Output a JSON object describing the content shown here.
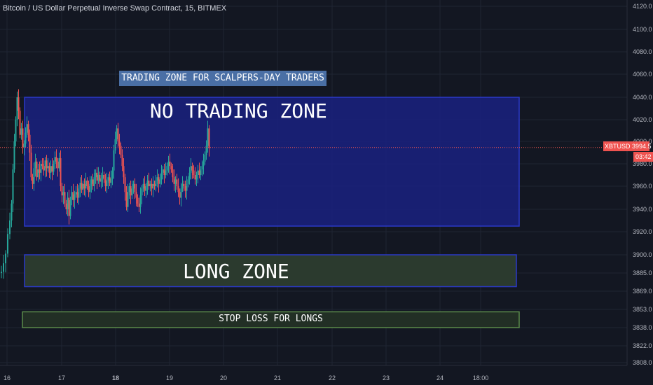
{
  "header": {
    "title": "Bitcoin / US Dollar Perpetual Inverse Swap Contract, 15, BITMEX"
  },
  "ticker": {
    "symbol": "XBTUSD",
    "price": "3994.5",
    "countdown": "03:42"
  },
  "annotations": {
    "trading_zone": "TRADING ZONE FOR SCALPERS-DAY TRADERS",
    "no_trading_zone": "NO TRADING ZONE",
    "long_zone": "LONG ZONE",
    "stop_loss": "STOP LOSS FOR LONGS"
  },
  "colors": {
    "background": "#131722",
    "grid": "#1f2433",
    "up_candle": "#26a69a",
    "down_candle": "#ef5350",
    "no_trade_fill": "#1a2180",
    "no_trade_border": "#2a38c8",
    "long_fill": "#2b3a2e",
    "long_border": "#2a38c8",
    "stop_fill": "#222f25",
    "stop_border": "#5a8a4a",
    "price_line": "#ef5350"
  },
  "chart_data": {
    "type": "candlestick",
    "title": "Bitcoin / US Dollar Perpetual Inverse Swap Contract, 15, BITMEX",
    "x_ticks": [
      "16",
      "17",
      "18",
      "19",
      "20",
      "21",
      "22",
      "23",
      "24",
      "18:00"
    ],
    "y_ticks": [
      "4120.0",
      "4100.0",
      "4080.0",
      "4060.0",
      "4040.0",
      "4020.0",
      "4000.0",
      "3980.0",
      "3960.0",
      "3940.0",
      "3920.0",
      "3900.0",
      "3885.0",
      "3869.0",
      "3853.0",
      "3838.0",
      "3822.0",
      "3808.0"
    ],
    "ylim": [
      3805,
      4125
    ],
    "last_price": 3994.5,
    "zones": [
      {
        "name": "no_trading_zone",
        "from": 3925,
        "to": 4040
      },
      {
        "name": "long_zone",
        "from": 3873,
        "to": 3900
      },
      {
        "name": "stop_loss",
        "from": 3838,
        "to": 3851
      }
    ],
    "price_path": [
      [
        0,
        3885
      ],
      [
        3,
        3886
      ],
      [
        6,
        3893
      ],
      [
        9,
        3901
      ],
      [
        12,
        3918
      ],
      [
        15,
        3930
      ],
      [
        17,
        3945
      ],
      [
        19,
        3975
      ],
      [
        21,
        4000
      ],
      [
        23,
        4020
      ],
      [
        25,
        4040
      ],
      [
        27,
        4028
      ],
      [
        29,
        4006
      ],
      [
        31,
        4012
      ],
      [
        33,
        3995
      ],
      [
        35,
        3998
      ],
      [
        37,
        4008
      ],
      [
        39,
        4016
      ],
      [
        41,
        4006
      ],
      [
        43,
        3990
      ],
      [
        45,
        3968
      ],
      [
        47,
        3962
      ],
      [
        49,
        3976
      ],
      [
        51,
        3982
      ],
      [
        53,
        3968
      ],
      [
        55,
        3975
      ],
      [
        57,
        3972
      ],
      [
        59,
        3980
      ],
      [
        61,
        3978
      ],
      [
        63,
        3974
      ],
      [
        65,
        3983
      ],
      [
        67,
        3976
      ],
      [
        69,
        3978
      ],
      [
        71,
        3972
      ],
      [
        73,
        3978
      ],
      [
        75,
        3973
      ],
      [
        77,
        3980
      ],
      [
        79,
        3986
      ],
      [
        81,
        3982
      ],
      [
        83,
        3976
      ],
      [
        85,
        3985
      ],
      [
        87,
        3960
      ],
      [
        89,
        3952
      ],
      [
        91,
        3955
      ],
      [
        93,
        3945
      ],
      [
        95,
        3940
      ],
      [
        97,
        3950
      ],
      [
        99,
        3934
      ],
      [
        101,
        3948
      ],
      [
        103,
        3955
      ],
      [
        105,
        3948
      ],
      [
        107,
        3953
      ],
      [
        109,
        3955
      ],
      [
        111,
        3950
      ],
      [
        113,
        3958
      ],
      [
        115,
        3963
      ],
      [
        117,
        3957
      ],
      [
        119,
        3962
      ],
      [
        121,
        3958
      ],
      [
        123,
        3965
      ],
      [
        125,
        3960
      ],
      [
        127,
        3955
      ],
      [
        129,
        3962
      ],
      [
        131,
        3966
      ],
      [
        133,
        3960
      ],
      [
        135,
        3968
      ],
      [
        137,
        3972
      ],
      [
        139,
        3965
      ],
      [
        141,
        3970
      ],
      [
        143,
        3964
      ],
      [
        145,
        3967
      ],
      [
        147,
        3970
      ],
      [
        149,
        3966
      ],
      [
        151,
        3960
      ],
      [
        153,
        3965
      ],
      [
        155,
        3968
      ],
      [
        157,
        3963
      ],
      [
        159,
        3967
      ],
      [
        161,
        3974
      ],
      [
        163,
        3992
      ],
      [
        165,
        4002
      ],
      [
        167,
        4012
      ],
      [
        169,
        4000
      ],
      [
        171,
        3996
      ],
      [
        173,
        3988
      ],
      [
        175,
        3978
      ],
      [
        177,
        3968
      ],
      [
        179,
        3955
      ],
      [
        181,
        3942
      ],
      [
        183,
        3955
      ],
      [
        185,
        3960
      ],
      [
        187,
        3952
      ],
      [
        189,
        3958
      ],
      [
        191,
        3962
      ],
      [
        193,
        3955
      ],
      [
        195,
        3950
      ],
      [
        197,
        3945
      ],
      [
        199,
        3942
      ],
      [
        201,
        3952
      ],
      [
        203,
        3958
      ],
      [
        205,
        3962
      ],
      [
        207,
        3956
      ],
      [
        209,
        3960
      ],
      [
        211,
        3965
      ],
      [
        213,
        3960
      ],
      [
        215,
        3962
      ],
      [
        217,
        3958
      ],
      [
        219,
        3962
      ],
      [
        221,
        3960
      ],
      [
        223,
        3965
      ],
      [
        225,
        3968
      ],
      [
        227,
        3962
      ],
      [
        229,
        3966
      ],
      [
        231,
        3972
      ],
      [
        233,
        3975
      ],
      [
        235,
        3970
      ],
      [
        237,
        3974
      ],
      [
        239,
        3978
      ],
      [
        241,
        3982
      ],
      [
        243,
        3978
      ],
      [
        245,
        3975
      ],
      [
        247,
        3968
      ],
      [
        249,
        3962
      ],
      [
        251,
        3966
      ],
      [
        253,
        3960
      ],
      [
        255,
        3955
      ],
      [
        257,
        3950
      ],
      [
        259,
        3958
      ],
      [
        261,
        3962
      ],
      [
        263,
        3960
      ],
      [
        265,
        3956
      ],
      [
        267,
        3962
      ],
      [
        269,
        3966
      ],
      [
        271,
        3972
      ],
      [
        273,
        3978
      ],
      [
        275,
        3974
      ],
      [
        277,
        3970
      ],
      [
        279,
        3966
      ],
      [
        281,
        3970
      ],
      [
        283,
        3974
      ],
      [
        285,
        3970
      ],
      [
        287,
        3975
      ],
      [
        289,
        3978
      ],
      [
        291,
        3982
      ],
      [
        293,
        3988
      ],
      [
        295,
        3996
      ],
      [
        297,
        4012
      ],
      [
        299,
        3994
      ]
    ]
  }
}
